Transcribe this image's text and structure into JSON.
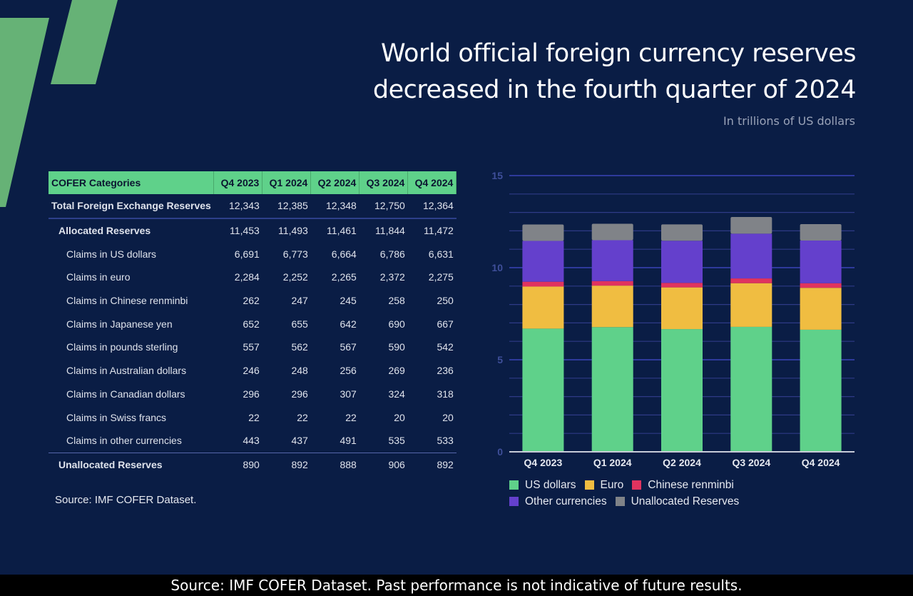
{
  "header": {
    "title_line1": "World official foreign currency reserves",
    "title_line2": "decreased in the fourth quarter of 2024",
    "subtitle": "In trillions of US dollars"
  },
  "table": {
    "columns": [
      "COFER Categories",
      "Q4 2023",
      "Q1 2024",
      "Q2 2024",
      "Q3 2024",
      "Q4 2024"
    ],
    "rows": [
      {
        "label": "Total Foreign Exchange Reserves",
        "kind": "total",
        "values": [
          "12,343",
          "12,385",
          "12,348",
          "12,750",
          "12,364"
        ]
      },
      {
        "label": "Allocated Reserves",
        "kind": "alloc",
        "values": [
          "11,453",
          "11,493",
          "11,461",
          "11,844",
          "11,472"
        ]
      },
      {
        "label": "Claims in US dollars",
        "kind": "claim",
        "values": [
          "6,691",
          "6,773",
          "6,664",
          "6,786",
          "6,631"
        ]
      },
      {
        "label": "Claims in euro",
        "kind": "claim",
        "values": [
          "2,284",
          "2,252",
          "2,265",
          "2,372",
          "2,275"
        ]
      },
      {
        "label": "Claims in Chinese renminbi",
        "kind": "claim",
        "values": [
          "262",
          "247",
          "245",
          "258",
          "250"
        ]
      },
      {
        "label": "Claims in Japanese yen",
        "kind": "claim",
        "values": [
          "652",
          "655",
          "642",
          "690",
          "667"
        ]
      },
      {
        "label": "Claims in pounds sterling",
        "kind": "claim",
        "values": [
          "557",
          "562",
          "567",
          "590",
          "542"
        ]
      },
      {
        "label": "Claims in Australian dollars",
        "kind": "claim",
        "values": [
          "246",
          "248",
          "256",
          "269",
          "236"
        ]
      },
      {
        "label": "Claims in Canadian dollars",
        "kind": "claim",
        "values": [
          "296",
          "296",
          "307",
          "324",
          "318"
        ]
      },
      {
        "label": "Claims in Swiss francs",
        "kind": "claim",
        "values": [
          "22",
          "22",
          "22",
          "20",
          "20"
        ]
      },
      {
        "label": "Claims in other currencies",
        "kind": "claim",
        "values": [
          "443",
          "437",
          "491",
          "535",
          "533"
        ]
      },
      {
        "label": "Unallocated Reserves",
        "kind": "unalloc",
        "values": [
          "890",
          "892",
          "888",
          "906",
          "892"
        ]
      }
    ]
  },
  "source": "Source: IMF COFER Dataset.",
  "footer": "Source: IMF COFER Dataset. Past performance is not indicative of future results.",
  "chart_data": {
    "type": "bar",
    "stacked": true,
    "categories": [
      "Q4 2023",
      "Q1 2024",
      "Q2 2024",
      "Q3 2024",
      "Q4 2024"
    ],
    "ylim": [
      0,
      15
    ],
    "yticks": [
      0,
      5,
      10,
      15
    ],
    "grid": true,
    "legend": "bottom",
    "series": [
      {
        "name": "US dollars",
        "color": "#5fd18a",
        "values": [
          6.691,
          6.773,
          6.664,
          6.786,
          6.631
        ]
      },
      {
        "name": "Euro",
        "color": "#f0bd41",
        "values": [
          2.284,
          2.252,
          2.265,
          2.372,
          2.275
        ]
      },
      {
        "name": "Chinese renminbi",
        "color": "#e0335f",
        "values": [
          0.262,
          0.247,
          0.245,
          0.258,
          0.25
        ]
      },
      {
        "name": "Other currencies",
        "color": "#6440cc",
        "values": [
          2.216,
          2.221,
          2.287,
          2.428,
          2.316
        ]
      },
      {
        "name": "Unallocated Reserves",
        "color": "#808388",
        "values": [
          0.89,
          0.892,
          0.888,
          0.906,
          0.892
        ]
      }
    ]
  }
}
